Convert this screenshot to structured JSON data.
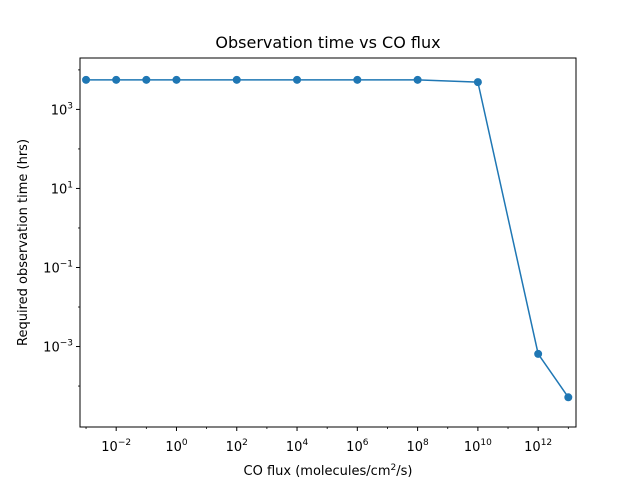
{
  "chart_data": {
    "type": "line",
    "title": "Observation time vs CO flux",
    "xlabel": "CO flux (molecules/cm²/s)",
    "ylabel": "Required observation time (hrs)",
    "x_scale": "log",
    "y_scale": "log",
    "xlim": [
      0.00063,
      18000000000000.0
    ],
    "ylim": [
      9.2e-06,
      20000
    ],
    "grid": false,
    "legend": "none",
    "x_ticks": [
      {
        "value": 0.01,
        "base": "10",
        "exp": "−2"
      },
      {
        "value": 1,
        "base": "10",
        "exp": "0"
      },
      {
        "value": 100,
        "base": "10",
        "exp": "2"
      },
      {
        "value": 10000,
        "base": "10",
        "exp": "4"
      },
      {
        "value": 1000000,
        "base": "10",
        "exp": "6"
      },
      {
        "value": 100000000,
        "base": "10",
        "exp": "8"
      },
      {
        "value": 10000000000,
        "base": "10",
        "exp": "10"
      },
      {
        "value": 1000000000000,
        "base": "10",
        "exp": "12"
      }
    ],
    "y_ticks": [
      {
        "value": 0.001,
        "base": "10",
        "exp": "−3"
      },
      {
        "value": 0.1,
        "base": "10",
        "exp": "−1"
      },
      {
        "value": 10,
        "base": "10",
        "exp": "1"
      },
      {
        "value": 1000,
        "base": "10",
        "exp": "3"
      }
    ],
    "series": [
      {
        "x": [
          0.001,
          0.01,
          0.1,
          1,
          100,
          10000,
          1000000,
          100000000,
          10000000000,
          1000000000000,
          10000000000000
        ],
        "y": [
          5600,
          5600,
          5600,
          5600,
          5600,
          5600,
          5600,
          5600,
          4900,
          0.00065,
          5.2e-05
        ],
        "color": "#1f77b4"
      }
    ]
  }
}
